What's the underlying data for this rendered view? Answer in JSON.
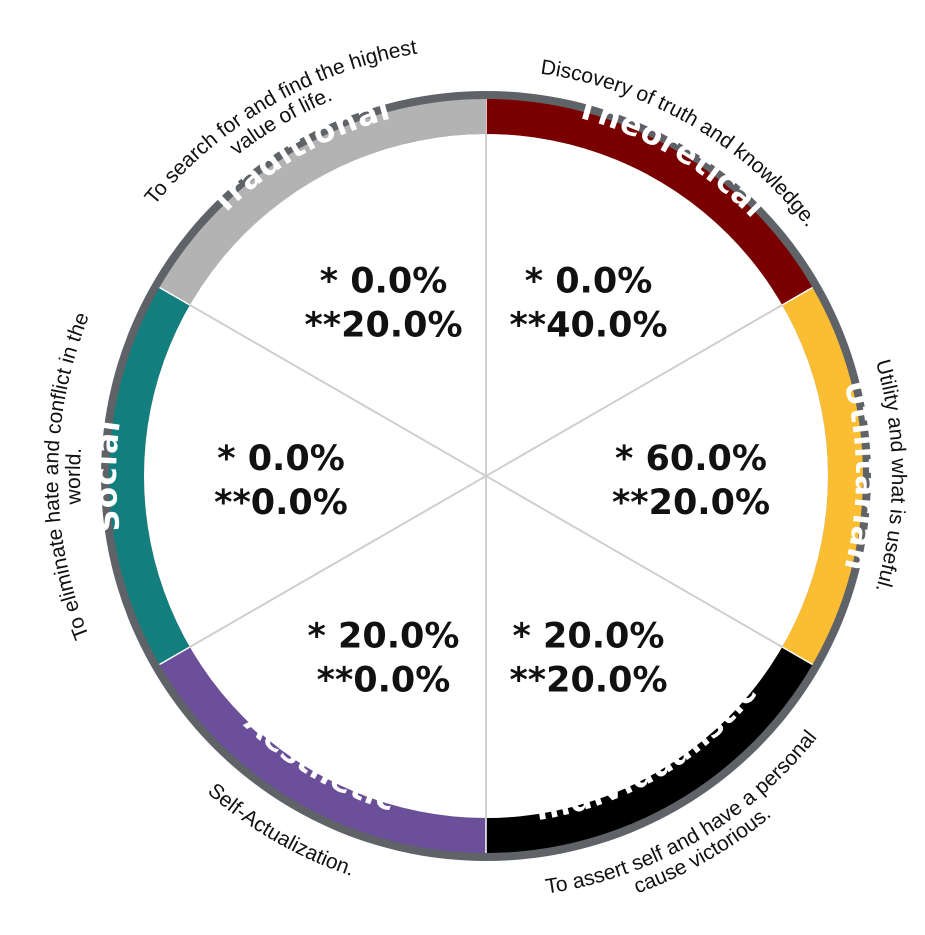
{
  "colors": {
    "background": "#ffffff",
    "outer_ring": "#5f6267",
    "divider": "#cfcfcf",
    "text": "#111111",
    "label_text": "#ffffff"
  },
  "segments": [
    {
      "name": "Theoretical",
      "color": "#7a0000",
      "description": [
        "Discovery of truth and knowledge."
      ],
      "value1": "* 0.0%",
      "value2": "**40.0%"
    },
    {
      "name": "Utilitarian",
      "color": "#fbbd31",
      "description": [
        "Utility and what is useful."
      ],
      "value1": "* 60.0%",
      "value2": "**20.0%"
    },
    {
      "name": "Individualistic",
      "color": "#000000",
      "description": [
        "To assert self and have a personal",
        "cause victorious."
      ],
      "value1": "* 20.0%",
      "value2": "**20.0%"
    },
    {
      "name": "Aesthetic",
      "color": "#6b4f9a",
      "description": [
        "Self-Actualization."
      ],
      "value1": "* 20.0%",
      "value2": "**0.0%"
    },
    {
      "name": "Social",
      "color": "#127e7d",
      "description": [
        "To eliminate hate and conflict in the",
        "world."
      ],
      "value1": "* 0.0%",
      "value2": "**0.0%"
    },
    {
      "name": "Traditional",
      "color": "#b3b3b3",
      "description": [
        "To search for and find the highest",
        "value of life."
      ],
      "value1": "* 0.0%",
      "value2": "**20.0%"
    }
  ]
}
